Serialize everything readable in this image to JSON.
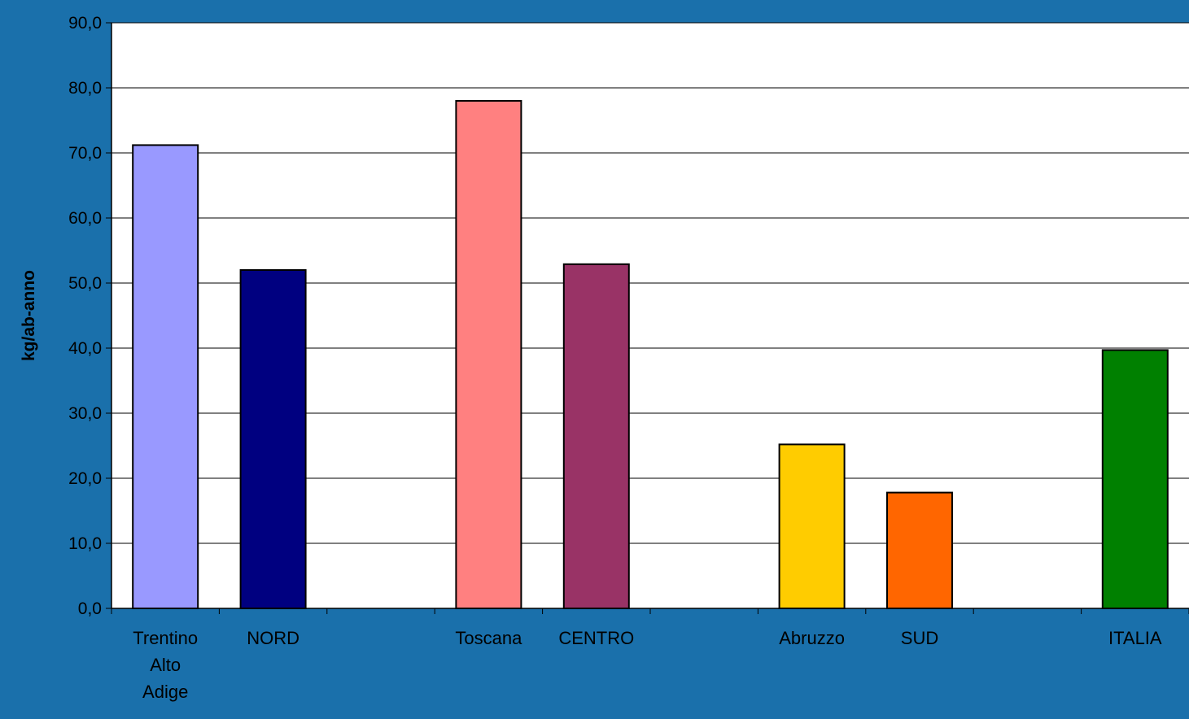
{
  "chart_data": {
    "type": "bar",
    "title": "",
    "xlabel": "",
    "ylabel": "kg/ab-anno",
    "ylim": [
      0,
      90
    ],
    "ytick_step": 10,
    "ytick_labels": [
      "0,0",
      "10,0",
      "20,0",
      "30,0",
      "40,0",
      "50,0",
      "60,0",
      "70,0",
      "80,0",
      "90,0"
    ],
    "grid": true,
    "legend": "none",
    "slots": [
      "Trentino Alto Adige",
      "NORD",
      "",
      "Toscana",
      "CENTRO",
      "",
      "Abruzzo",
      "SUD",
      "",
      "ITALIA"
    ],
    "tick_label_lines": [
      [
        "Trentino",
        "Alto",
        "Adige"
      ],
      [
        "NORD"
      ],
      [],
      [
        "Toscana"
      ],
      [
        "CENTRO"
      ],
      [],
      [
        "Abruzzo"
      ],
      [
        "SUD"
      ],
      [],
      [
        "ITALIA"
      ]
    ],
    "values": [
      71.2,
      52.0,
      null,
      78.0,
      52.9,
      null,
      25.2,
      17.8,
      null,
      39.7
    ],
    "colors": [
      "#9999ff",
      "#000080",
      "",
      "#ff8080",
      "#993366",
      "",
      "#ffcc00",
      "#ff6600",
      "",
      "#008000"
    ]
  },
  "colors": {
    "background": "#1a70ab",
    "plot_area": "#ffffff",
    "gridline": "#000000",
    "text": "#000000"
  }
}
